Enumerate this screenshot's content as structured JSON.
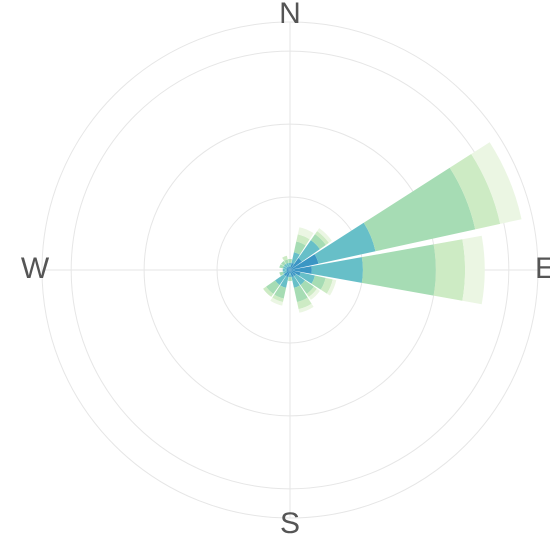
{
  "chart_data": {
    "type": "windrose",
    "categories": [
      "N",
      null,
      null,
      null,
      "E",
      null,
      null,
      null,
      "S",
      null,
      null,
      null,
      "W",
      null,
      null,
      null
    ],
    "series": [
      {
        "color": "#3b96c4",
        "values": [
          0.05,
          0.1,
          0.2,
          0.4,
          0.3,
          0.15,
          0.1,
          0.1,
          0.05,
          0.1,
          0.1,
          0.05,
          0.05,
          0.05,
          0.05,
          0.05
        ]
      },
      {
        "color": "#67bfc8",
        "values": [
          0.05,
          0.15,
          0.3,
          0.8,
          0.7,
          0.2,
          0.15,
          0.15,
          0.05,
          0.15,
          0.15,
          0.05,
          0.05,
          0.05,
          0.05,
          0.05
        ]
      },
      {
        "color": "#a6dcb4",
        "values": [
          0.05,
          0.15,
          0.1,
          1.4,
          1.0,
          0.15,
          0.15,
          0.2,
          0.05,
          0.15,
          0.15,
          0.05,
          0,
          0.05,
          0.05,
          0.05
        ]
      },
      {
        "color": "#cdebc4",
        "values": [
          0,
          0.1,
          0.05,
          0.35,
          0.4,
          0.1,
          0.05,
          0.1,
          0,
          0.05,
          0.05,
          0,
          0,
          0,
          0,
          0.05
        ]
      },
      {
        "color": "#ebf6e3",
        "values": [
          0,
          0.1,
          0.05,
          0.3,
          0.27,
          0.05,
          0.05,
          0.05,
          0,
          0.05,
          0,
          0,
          0,
          0,
          0,
          0
        ]
      }
    ],
    "rlim": [
      0,
      3.4
    ],
    "rticks": [
      1,
      2,
      3
    ],
    "grid": true
  }
}
